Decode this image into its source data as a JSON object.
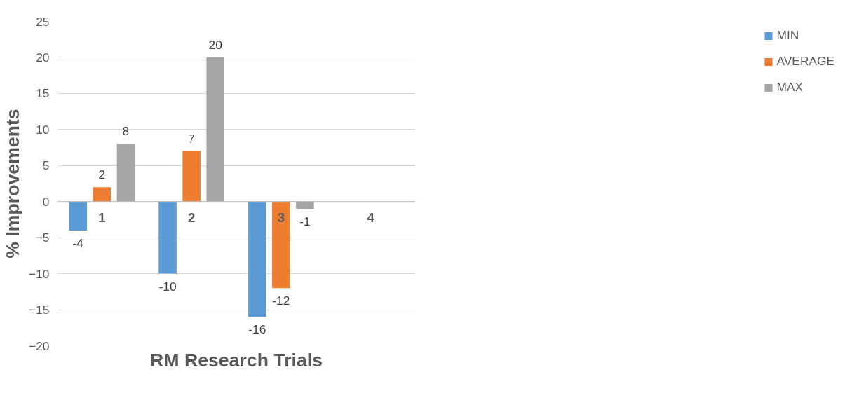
{
  "chart_data": {
    "type": "bar",
    "xlabel": "RM Research Trials",
    "ylabel": "% Improvements",
    "categories": [
      "1",
      "2",
      "3",
      "4"
    ],
    "series": [
      {
        "name": "MIN",
        "color": "#5b9bd5",
        "values": [
          -4,
          -10,
          -16,
          null
        ]
      },
      {
        "name": "AVERAGE",
        "color": "#ed7d31",
        "values": [
          2,
          7,
          -12,
          null
        ]
      },
      {
        "name": "MAX",
        "color": "#a5a5a5",
        "values": [
          8,
          20,
          -1,
          null
        ]
      }
    ],
    "ylim": [
      -20,
      25
    ],
    "yticks": [
      -20,
      -15,
      -10,
      -5,
      0,
      5,
      10,
      15,
      20,
      25
    ],
    "grid": "y",
    "legend": "right",
    "data_labels": true
  }
}
